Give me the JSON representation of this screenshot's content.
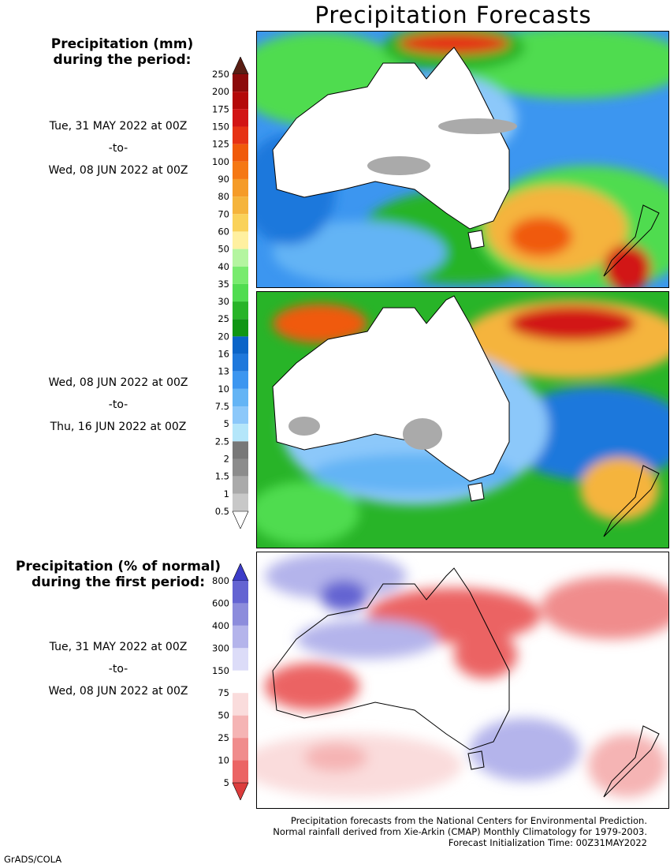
{
  "title": "Precipitation Forecasts",
  "panel1": {
    "heading_line1": "Precipitation (mm)",
    "heading_line2": "during the period:",
    "start": "Tue, 31 MAY 2022 at 00Z",
    "to": "-to-",
    "end": "Wed, 08 JUN 2022 at 00Z"
  },
  "panel2": {
    "start": "Wed, 08 JUN 2022 at 00Z",
    "to": "-to-",
    "end": "Thu, 16 JUN 2022 at 00Z"
  },
  "panel3": {
    "heading_line1": "Precipitation (% of normal)",
    "heading_line2": "during the first period:",
    "start": "Tue, 31 MAY 2022 at 00Z",
    "to": "-to-",
    "end": "Wed, 08 JUN 2022 at 00Z"
  },
  "precip_colorbar": {
    "labels": [
      "250",
      "200",
      "175",
      "150",
      "125",
      "100",
      "90",
      "80",
      "70",
      "60",
      "50",
      "40",
      "35",
      "30",
      "25",
      "20",
      "16",
      "13",
      "10",
      "7.5",
      "5",
      "2.5",
      "2",
      "1.5",
      "1",
      "0.5"
    ],
    "colors": [
      "#5a1e14",
      "#8c0a0a",
      "#b40a0a",
      "#d21414",
      "#e63214",
      "#f05a0a",
      "#f57814",
      "#f59b28",
      "#f5b43c",
      "#fad25a",
      "#fff0a0",
      "#b4f5a0",
      "#78eb6e",
      "#50dc50",
      "#28b428",
      "#109614",
      "#0a64c8",
      "#1e78dc",
      "#3c96f0",
      "#64b4f5",
      "#8cc8fa",
      "#b4e6fa",
      "#787878",
      "#8c8c8c",
      "#aaaaaa",
      "#c8c8c8",
      "#ffffff"
    ]
  },
  "pct_colorbar": {
    "labels": [
      "800",
      "600",
      "400",
      "300",
      "150",
      "75",
      "50",
      "25",
      "10",
      "5"
    ],
    "colors": [
      "#3c3cc8",
      "#6464d2",
      "#8c8cdc",
      "#b4b4eb",
      "#dcdcf8",
      "#ffffff",
      "#fadcdc",
      "#f5b4b4",
      "#f08c8c",
      "#eb6464",
      "#dc3c3c"
    ]
  },
  "footer": {
    "line1": "Precipitation forecasts from the National Centers for Environmental Prediction.",
    "line2": "Normal rainfall derived from Xie-Arkin (CMAP) Monthly Climatology for 1979-2003.",
    "line3": "Forecast Initialization Time: 00Z31MAY2022"
  },
  "credit": "GrADS/COLA"
}
